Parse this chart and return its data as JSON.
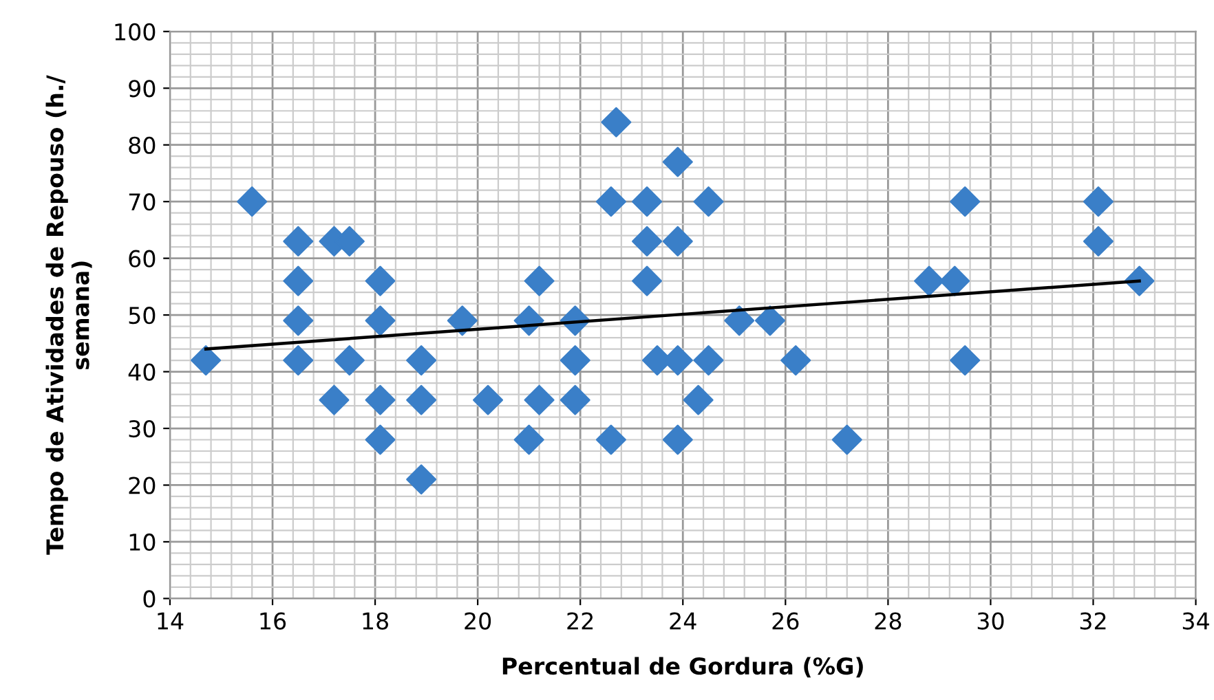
{
  "chart_data": {
    "type": "scatter",
    "xlabel": "Percentual de Gordura (%G)",
    "ylabel": "Tempo de Atividades de Repouso (h./\nsemana)",
    "series": [
      {
        "color": "#3a7fc8",
        "marker": "diamond",
        "x": [
          14.7,
          15.6,
          16.5,
          16.5,
          16.5,
          16.5,
          17.2,
          17.2,
          17.5,
          17.5,
          18.1,
          18.1,
          18.1,
          18.1,
          18.9,
          18.9,
          18.9,
          19.7,
          20.2,
          21.0,
          21.0,
          21.2,
          21.2,
          21.9,
          21.9,
          21.9,
          22.6,
          22.6,
          22.7,
          23.3,
          23.3,
          23.3,
          23.5,
          23.9,
          23.9,
          23.9,
          23.9,
          24.3,
          24.5,
          24.5,
          25.1,
          25.7,
          26.2,
          27.2,
          28.8,
          29.3,
          29.5,
          29.5,
          32.1,
          32.1,
          32.9
        ],
        "values": [
          42,
          70,
          63,
          56,
          49,
          42,
          63,
          35,
          63,
          42,
          56,
          49,
          35,
          28,
          42,
          35,
          21,
          49,
          35,
          49,
          28,
          56,
          35,
          49,
          42,
          35,
          70,
          28,
          84,
          70,
          63,
          56,
          42,
          77,
          63,
          42,
          28,
          35,
          70,
          42,
          49,
          49,
          42,
          28,
          56,
          56,
          70,
          42,
          70,
          63,
          56
        ]
      },
      {
        "type": "line",
        "color": "#000000",
        "marker": "none",
        "line_style": "solid",
        "x": [
          14.7,
          32.9
        ],
        "values": [
          44,
          56
        ]
      }
    ],
    "xlim": [
      14,
      34
    ],
    "xticks": [
      14,
      16,
      18,
      20,
      22,
      24,
      26,
      28,
      30,
      32,
      34
    ],
    "ylim": [
      0,
      100
    ],
    "yticks": [
      0,
      10,
      20,
      30,
      40,
      50,
      60,
      70,
      80,
      90,
      100
    ],
    "grid": true
  }
}
